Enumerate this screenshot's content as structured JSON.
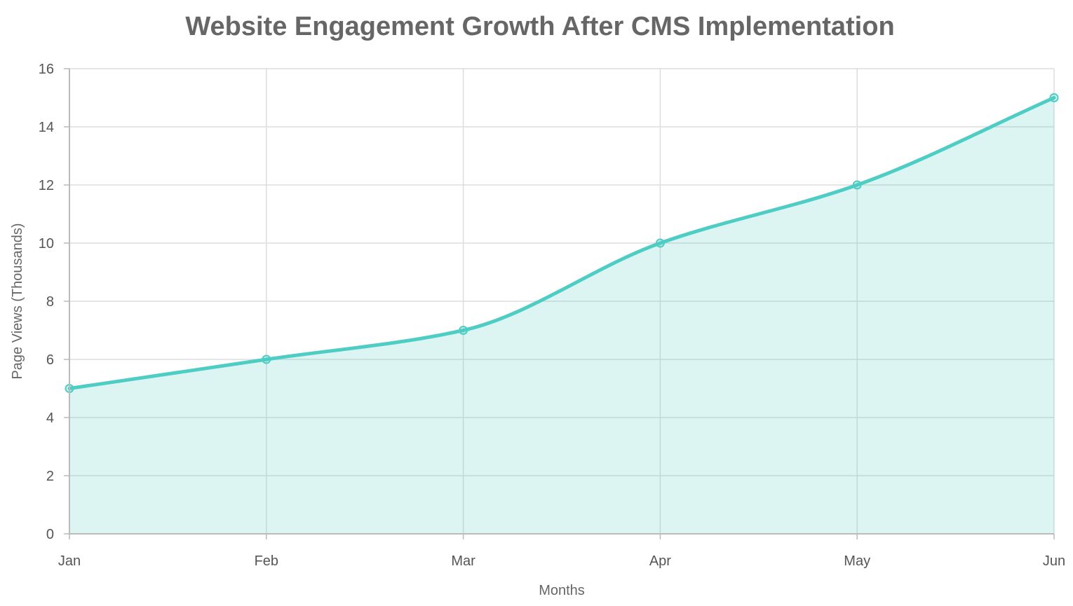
{
  "chart_data": {
    "type": "area",
    "title": "Website Engagement Growth After CMS Implementation",
    "xlabel": "Months",
    "ylabel": "Page Views (Thousands)",
    "categories": [
      "Jan",
      "Feb",
      "Mar",
      "Apr",
      "May",
      "Jun"
    ],
    "series": [
      {
        "values": [
          5,
          6,
          7,
          10,
          12,
          15
        ]
      }
    ],
    "ylim": [
      0,
      16
    ],
    "yticks": [
      0,
      2,
      4,
      6,
      8,
      10,
      12,
      14,
      16
    ],
    "grid": true,
    "legend": "none",
    "colors": {
      "line": "#4ECDC4",
      "fill": "#4ECDC4",
      "fill_opacity": 0.2
    }
  }
}
